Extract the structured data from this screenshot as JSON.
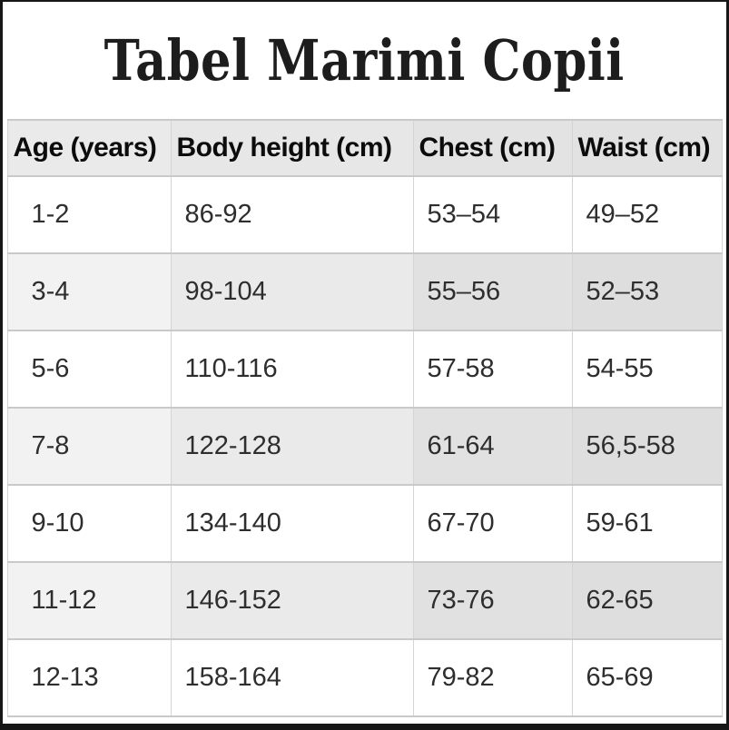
{
  "page": {
    "title": "Tabel Marimi Copii"
  },
  "chart_data": {
    "type": "table",
    "title": "Tabel Marimi Copii",
    "columns": [
      "Age (years)",
      "Body height (cm)",
      "Chest (cm)",
      "Waist (cm)"
    ],
    "rows": [
      [
        "1-2",
        "86-92",
        "53–54",
        "49–52"
      ],
      [
        "3-4",
        "98-104",
        "55–56",
        "52–53"
      ],
      [
        "5-6",
        "110-116",
        "57-58",
        "54-55"
      ],
      [
        "7-8",
        "122-128",
        "61-64",
        "56,5-58"
      ],
      [
        "9-10",
        "134-140",
        "67-70",
        "59-61"
      ],
      [
        "11-12",
        "146-152",
        "73-76",
        "62-65"
      ],
      [
        "12-13",
        "158-164",
        "79-82",
        "65-69"
      ]
    ]
  },
  "colors": {
    "frame_border": "#161616",
    "header_bg": "#e7e7e7",
    "stripe_bg": "#e4e4e4",
    "row_bg": "#ffffff",
    "grid_line": "#c9c9c9",
    "title_text": "#1d1d1d",
    "body_text": "#2e2e2e"
  }
}
